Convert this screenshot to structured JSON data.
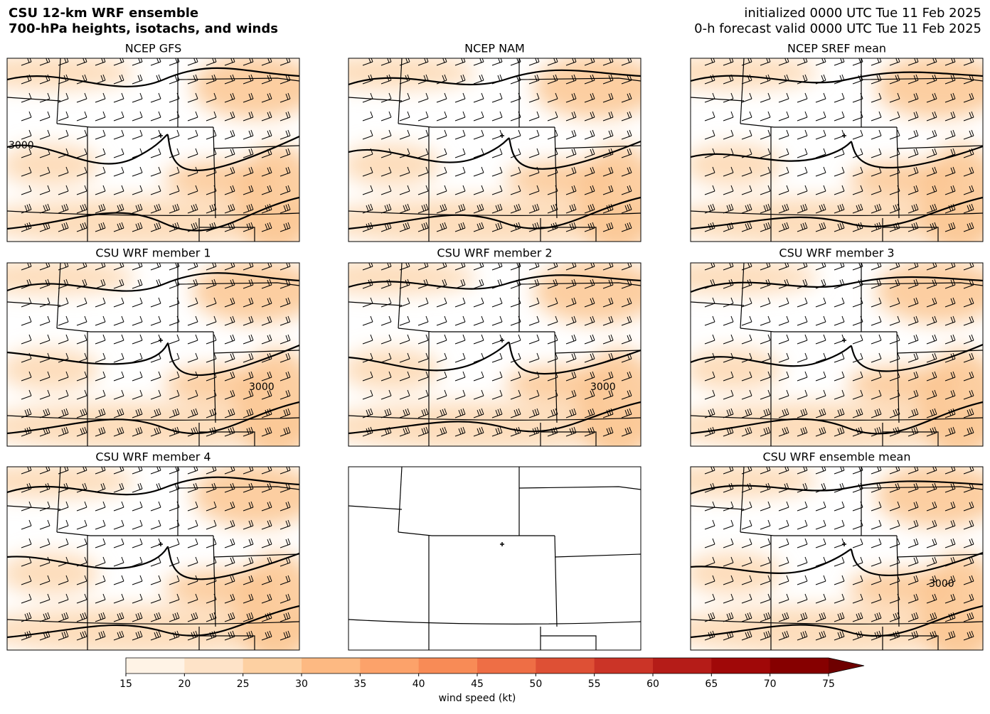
{
  "header": {
    "title_lines": [
      "CSU 12-km WRF ensemble",
      "700-hPa heights, isotachs, and winds"
    ],
    "init": "initialized 0000 UTC Tue 11 Feb 2025",
    "valid": "0-h forecast valid 0000 UTC Tue 11 Feb 2025"
  },
  "panels": [
    {
      "title": "NCEP GFS",
      "contour_labels": [
        "3000"
      ]
    },
    {
      "title": "NCEP NAM"
    },
    {
      "title": "NCEP SREF mean"
    },
    {
      "title": "CSU WRF member 1",
      "contour_labels": [
        "3000"
      ]
    },
    {
      "title": "CSU WRF member 2",
      "contour_labels": [
        "3000"
      ]
    },
    {
      "title": "CSU WRF member 3"
    },
    {
      "title": "CSU WRF member 4"
    },
    {
      "title": null
    },
    {
      "title": "CSU WRF ensemble mean",
      "contour_labels": [
        "3000"
      ]
    }
  ],
  "colorbar": {
    "label": "wind speed (kt)",
    "lim": [
      15,
      75
    ],
    "ticks": [
      15,
      20,
      25,
      30,
      35,
      40,
      45,
      50,
      55,
      60,
      65,
      70,
      75
    ],
    "colors": [
      "#fff3e6",
      "#fee3c8",
      "#fdd0a2",
      "#fdb982",
      "#fca26a",
      "#f88b56",
      "#ee6e45",
      "#de5035",
      "#cb3427",
      "#b51c18",
      "#a00808",
      "#860000",
      "#6e0000"
    ]
  }
}
